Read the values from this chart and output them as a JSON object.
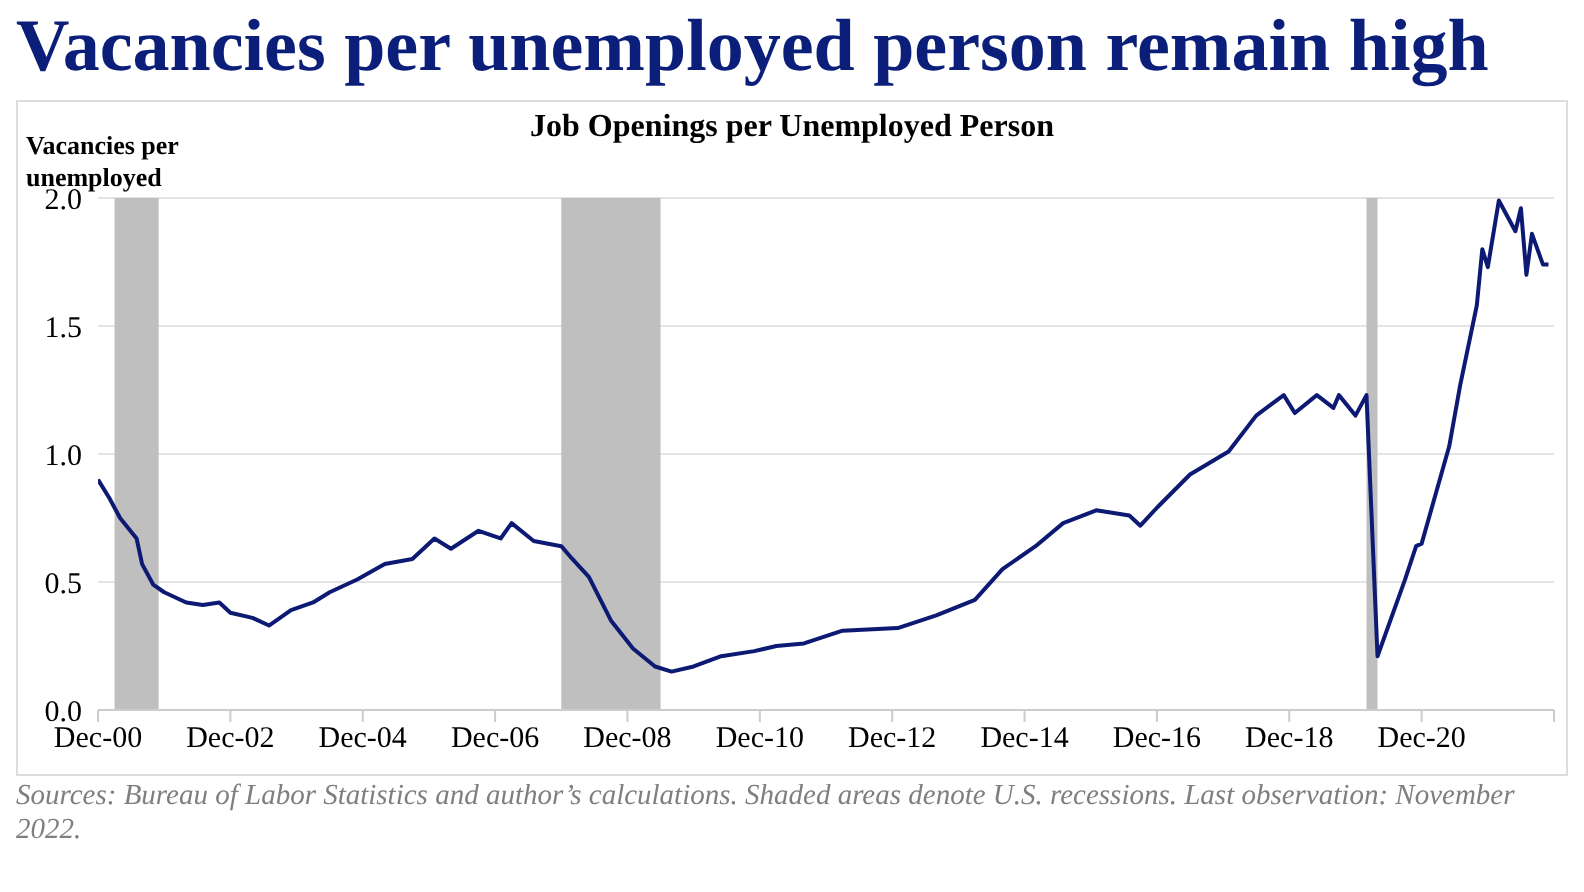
{
  "chart_data": {
    "type": "line",
    "title": "Vacancies per unemployed person remain high",
    "subtitle": "Job Openings per Unemployed Person",
    "ylabel": "Vacancies per unemployed",
    "annotations": [
      "Sources: Bureau of Labor Statistics and author’s calculations. Shaded areas denote U.S. recessions. Last observation: November 2022."
    ],
    "x": [
      "2000-12",
      "2001-02",
      "2001-04",
      "2001-07",
      "2001-08",
      "2001-10",
      "2001-12",
      "2002-04",
      "2002-07",
      "2002-10",
      "2002-12",
      "2003-04",
      "2003-07",
      "2003-11",
      "2004-03",
      "2004-06",
      "2004-11",
      "2005-04",
      "2005-09",
      "2006-01",
      "2006-04",
      "2006-09",
      "2007-01",
      "2007-03",
      "2007-07",
      "2007-12",
      "2008-02",
      "2008-05",
      "2008-09",
      "2009-01",
      "2009-05",
      "2009-08",
      "2009-12",
      "2010-05",
      "2010-11",
      "2011-03",
      "2011-08",
      "2012-03",
      "2013-01",
      "2013-08",
      "2014-03",
      "2014-08",
      "2015-02",
      "2015-07",
      "2016-01",
      "2016-07",
      "2016-09",
      "2016-12",
      "2017-06",
      "2018-01",
      "2018-06",
      "2018-11",
      "2019-01",
      "2019-05",
      "2019-08",
      "2019-09",
      "2019-12",
      "2020-02",
      "2020-04",
      "2020-09",
      "2020-11",
      "2020-12",
      "2021-05",
      "2021-07",
      "2021-10",
      "2021-11",
      "2021-12",
      "2022-02",
      "2022-05",
      "2022-06",
      "2022-07",
      "2022-08",
      "2022-10",
      "2022-11"
    ],
    "series": [
      {
        "color": "#0d1a73",
        "values": [
          0.9,
          0.83,
          0.75,
          0.67,
          0.57,
          0.49,
          0.46,
          0.42,
          0.41,
          0.42,
          0.38,
          0.36,
          0.33,
          0.39,
          0.42,
          0.46,
          0.51,
          0.57,
          0.59,
          0.67,
          0.63,
          0.7,
          0.67,
          0.73,
          0.66,
          0.64,
          0.59,
          0.52,
          0.35,
          0.24,
          0.17,
          0.15,
          0.17,
          0.21,
          0.23,
          0.25,
          0.26,
          0.31,
          0.32,
          0.37,
          0.43,
          0.55,
          0.64,
          0.73,
          0.78,
          0.76,
          0.72,
          0.79,
          0.92,
          1.01,
          1.15,
          1.23,
          1.16,
          1.23,
          1.18,
          1.23,
          1.15,
          1.23,
          0.21,
          0.51,
          0.64,
          0.65,
          1.03,
          1.27,
          1.58,
          1.8,
          1.73,
          1.99,
          1.87,
          1.96,
          1.7,
          1.86,
          1.74,
          1.74
        ]
      }
    ],
    "xlim": [
      "2000-12",
      "2022-12"
    ],
    "xticks": [
      {
        "value": "2000-12",
        "label": "Dec-00"
      },
      {
        "value": "2002-12",
        "label": "Dec-02"
      },
      {
        "value": "2004-12",
        "label": "Dec-04"
      },
      {
        "value": "2006-12",
        "label": "Dec-06"
      },
      {
        "value": "2008-12",
        "label": "Dec-08"
      },
      {
        "value": "2010-12",
        "label": "Dec-10"
      },
      {
        "value": "2012-12",
        "label": "Dec-12"
      },
      {
        "value": "2014-12",
        "label": "Dec-14"
      },
      {
        "value": "2016-12",
        "label": "Dec-16"
      },
      {
        "value": "2018-12",
        "label": "Dec-18"
      },
      {
        "value": "2020-12",
        "label": "Dec-20"
      },
      {
        "value": "2022-12",
        "label": null
      }
    ],
    "ylim": [
      0,
      2
    ],
    "yticks": [
      {
        "value": 0,
        "label": "0.0"
      },
      {
        "value": 0.5,
        "label": "0.5"
      },
      {
        "value": 1,
        "label": "1.0"
      },
      {
        "value": 1.5,
        "label": "1.5"
      },
      {
        "value": 2,
        "label": "2.0"
      }
    ],
    "bands": [
      {
        "axis": "x",
        "from": "2001-03",
        "to": "2001-11",
        "color": "#bfbfbf"
      },
      {
        "axis": "x",
        "from": "2007-12",
        "to": "2009-06",
        "color": "#bfbfbf"
      },
      {
        "axis": "x",
        "from": "2020-02",
        "to": "2020-04",
        "color": "#bfbfbf"
      }
    ],
    "grid": "y"
  }
}
